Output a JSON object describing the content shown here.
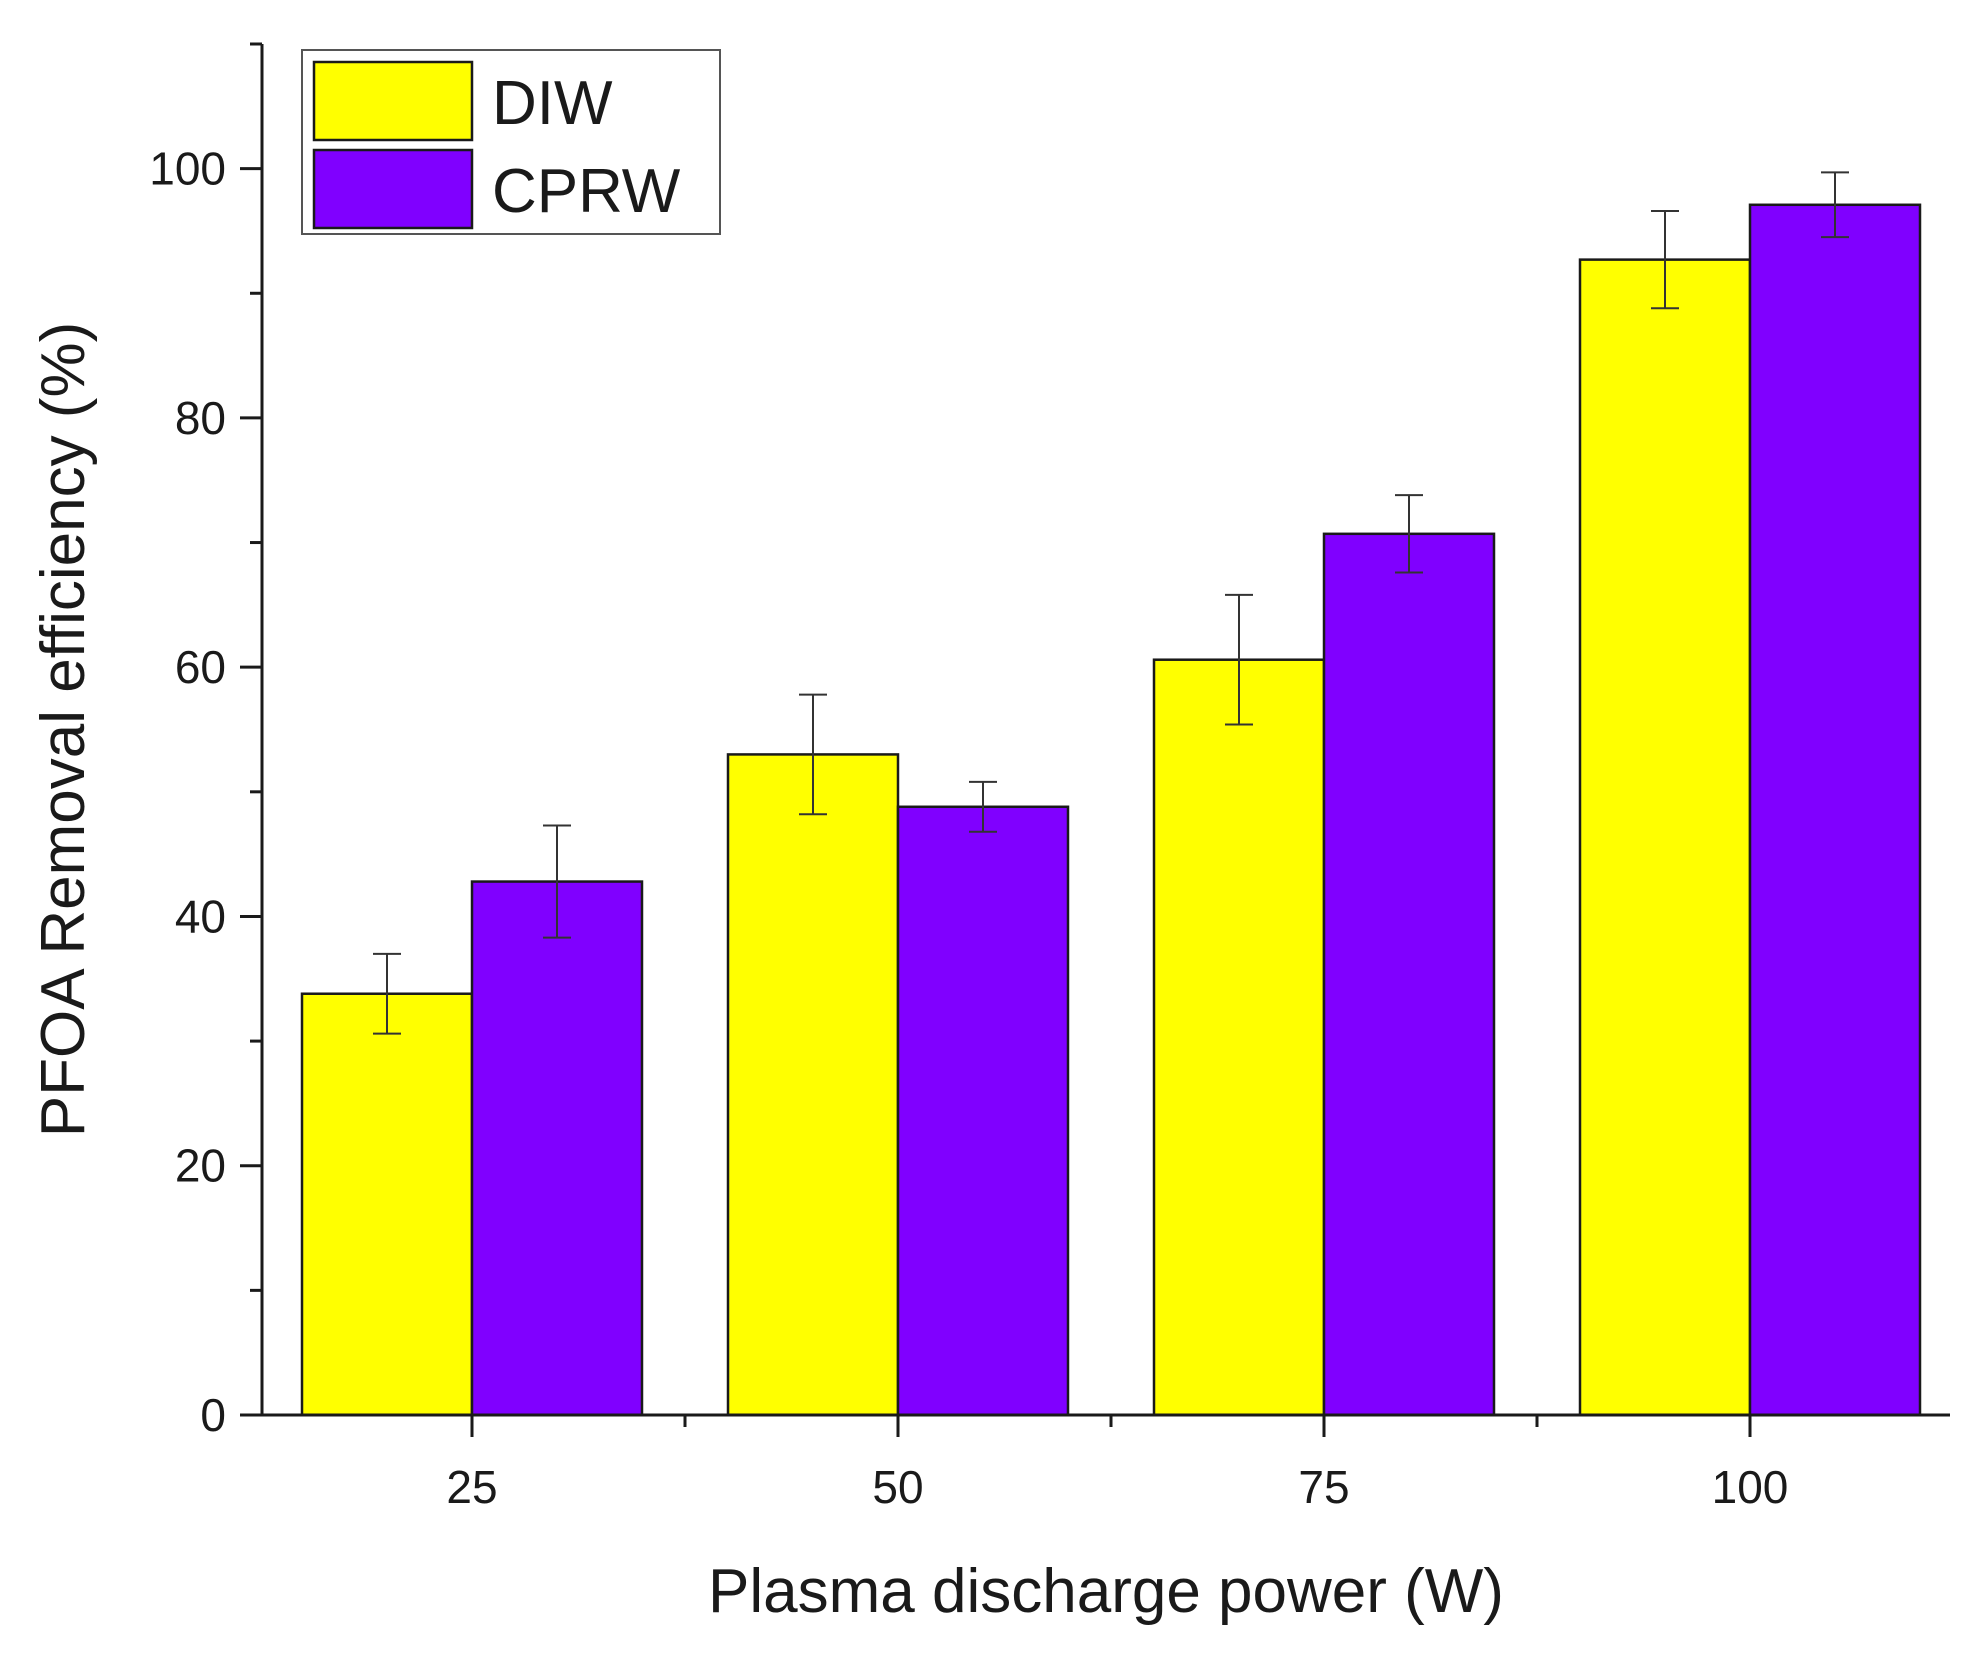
{
  "chart_data": {
    "type": "bar",
    "categories": [
      "25",
      "50",
      "75",
      "100"
    ],
    "series": [
      {
        "name": "DIW",
        "color": "#ffff00",
        "values": [
          33.8,
          53.0,
          60.6,
          92.7
        ],
        "errors": [
          3.2,
          4.8,
          5.2,
          3.9
        ]
      },
      {
        "name": "CPRW",
        "color": "#8000ff",
        "values": [
          42.8,
          48.8,
          70.7,
          97.1
        ],
        "errors": [
          4.5,
          2.0,
          3.1,
          2.6
        ]
      }
    ],
    "xlabel": "Plasma discharge power (W)",
    "ylabel": "PFOA Removal efficiency (%)",
    "ylim": [
      0,
      110
    ],
    "yticks": [
      0,
      20,
      40,
      60,
      80,
      100
    ],
    "yticks_minor": [
      10,
      30,
      50,
      70,
      90,
      110
    ],
    "grid": false,
    "legend_position": "top-left"
  }
}
